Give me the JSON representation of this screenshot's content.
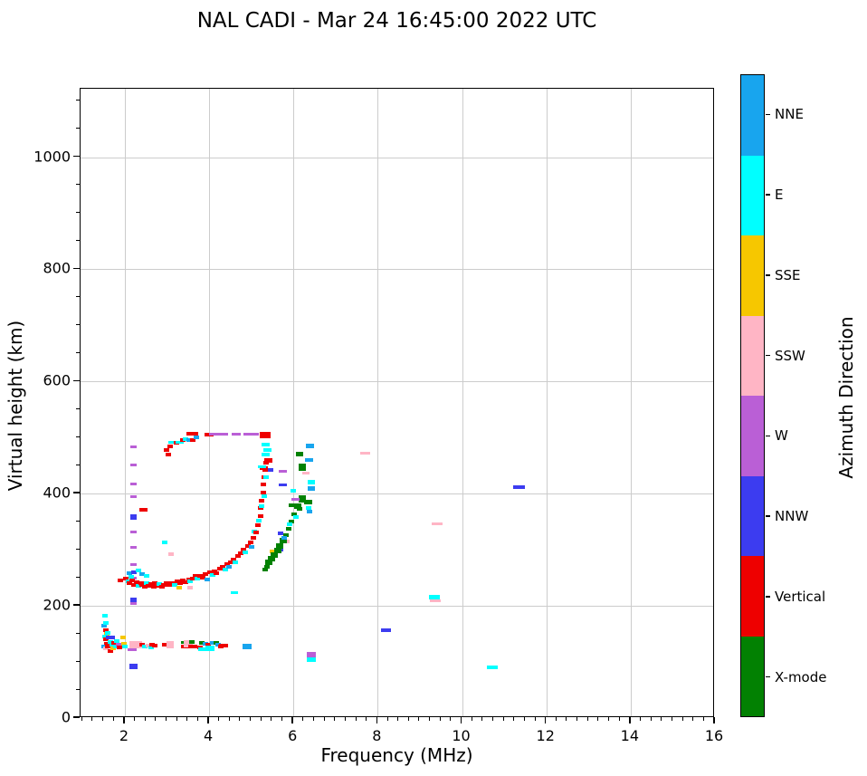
{
  "title": "NAL CADI - Mar 24 16:45:00 2022 UTC",
  "chart_data": {
    "type": "scatter",
    "title": "NAL CADI - Mar 24 16:45:00 2022 UTC",
    "xlabel": "Frequency (MHz)",
    "ylabel": "Virtual height (km)",
    "xlim": [
      0.95,
      16.0
    ],
    "ylim": [
      0,
      1122
    ],
    "x_ticks": [
      2,
      4,
      6,
      8,
      10,
      12,
      14,
      16
    ],
    "y_ticks": [
      0,
      200,
      400,
      600,
      800,
      1000
    ],
    "x_minor_step": 0.25,
    "y_minor_step": 50,
    "grid": true,
    "grid_color": "#cccccc",
    "axis_color": "#000000",
    "legend_position": "right-colorbar",
    "colorbar": {
      "label": "Azimuth Direction",
      "categories_bottom_to_top": [
        "X-mode",
        "Vertical",
        "NNW",
        "W",
        "SSW",
        "SSE",
        "E",
        "NNE"
      ],
      "colors": {
        "NNE": "#18a5ee",
        "E": "#00ffff",
        "SSE": "#f6c700",
        "SSW": "#ffb5c5",
        "W": "#ba5fd6",
        "NNW": "#3c3cf0",
        "Vertical": "#ee0000",
        "X-mode": "#028102"
      }
    },
    "point_format": [
      "frequency_mhz",
      "virtual_height_km",
      "azimuth_category",
      "px_width_optional",
      "px_height_optional"
    ],
    "points": [
      [
        1.52,
        182,
        "E"
      ],
      [
        1.5,
        164,
        "NNE"
      ],
      [
        1.55,
        170,
        "E"
      ],
      [
        1.55,
        157,
        "Vertical"
      ],
      [
        1.57,
        150,
        "SSE"
      ],
      [
        1.52,
        146,
        "E"
      ],
      [
        1.55,
        140,
        "Vertical"
      ],
      [
        1.6,
        152,
        "E"
      ],
      [
        1.62,
        144,
        "NNW"
      ],
      [
        1.58,
        133,
        "Vertical"
      ],
      [
        1.5,
        128,
        "NNE"
      ],
      [
        1.55,
        124,
        "SSW"
      ],
      [
        1.6,
        127,
        "Vertical"
      ],
      [
        1.65,
        136,
        "E"
      ],
      [
        1.65,
        120,
        "Vertical"
      ],
      [
        1.7,
        143,
        "NNW"
      ],
      [
        1.7,
        130,
        "E"
      ],
      [
        1.73,
        124,
        "SSE"
      ],
      [
        1.75,
        134,
        "Vertical"
      ],
      [
        1.78,
        128,
        "E"
      ],
      [
        1.8,
        138,
        "E"
      ],
      [
        1.85,
        130,
        "W"
      ],
      [
        1.88,
        126,
        "Vertical"
      ],
      [
        1.95,
        143,
        "SSE"
      ],
      [
        1.97,
        133,
        "SSE"
      ],
      [
        2.0,
        128,
        "E"
      ],
      [
        2.18,
        122,
        "W",
        10,
        3
      ],
      [
        2.25,
        131,
        "SSW",
        14,
        8
      ],
      [
        2.42,
        131,
        "Vertical"
      ],
      [
        2.48,
        127,
        "E"
      ],
      [
        2.55,
        129,
        "SSW"
      ],
      [
        2.62,
        126,
        "E"
      ],
      [
        2.65,
        131,
        "Vertical"
      ],
      [
        2.72,
        129,
        "Vertical"
      ],
      [
        3.0,
        130,
        "Vertical",
        10,
        4
      ],
      [
        3.08,
        130,
        "SSW",
        8,
        8
      ],
      [
        3.42,
        134,
        "X-mode",
        8,
        3
      ],
      [
        3.45,
        127,
        "Vertical",
        10,
        4
      ],
      [
        3.5,
        132,
        "SSW",
        10,
        8
      ],
      [
        3.58,
        135,
        "X-mode"
      ],
      [
        3.62,
        128,
        "Vertical",
        10,
        4
      ],
      [
        3.78,
        126,
        "Vertical"
      ],
      [
        3.82,
        134,
        "X-mode"
      ],
      [
        3.85,
        122,
        "E",
        10,
        4
      ],
      [
        3.92,
        133,
        "NNE"
      ],
      [
        3.97,
        130,
        "Vertical"
      ],
      [
        4.02,
        125,
        "E",
        10,
        6
      ],
      [
        4.08,
        134,
        "NNE"
      ],
      [
        4.17,
        134,
        "X-mode"
      ],
      [
        4.22,
        131,
        "NNE"
      ],
      [
        4.28,
        128,
        "Vertical"
      ],
      [
        4.35,
        129,
        "Vertical",
        10,
        4
      ],
      [
        4.9,
        128,
        "NNE",
        10,
        6
      ],
      [
        6.42,
        113,
        "W",
        10,
        6
      ],
      [
        6.42,
        104,
        "E",
        10,
        5
      ],
      [
        2.2,
        92,
        "NNW",
        9,
        6
      ],
      [
        10.72,
        90,
        "E",
        12,
        4
      ],
      [
        2.2,
        483,
        "W",
        7,
        3
      ],
      [
        2.2,
        452,
        "W",
        7,
        3
      ],
      [
        2.2,
        417,
        "W",
        7,
        3
      ],
      [
        2.2,
        394,
        "W",
        7,
        3
      ],
      [
        2.2,
        358,
        "NNW",
        7,
        6
      ],
      [
        2.2,
        331,
        "W",
        7,
        3
      ],
      [
        2.2,
        304,
        "W",
        7,
        3
      ],
      [
        2.2,
        273,
        "W",
        7,
        3
      ],
      [
        2.2,
        250,
        "W",
        7,
        3
      ],
      [
        2.2,
        210,
        "NNW",
        7,
        5
      ],
      [
        2.2,
        204,
        "W",
        7,
        3
      ],
      [
        2.45,
        372,
        "Vertical",
        9,
        4
      ],
      [
        1.9,
        246,
        "Vertical"
      ],
      [
        2.02,
        248,
        "Vertical"
      ],
      [
        2.08,
        243,
        "E"
      ],
      [
        2.12,
        240,
        "Vertical"
      ],
      [
        2.18,
        245,
        "Vertical"
      ],
      [
        2.22,
        238,
        "Vertical"
      ],
      [
        2.28,
        242,
        "Vertical"
      ],
      [
        2.32,
        236,
        "E"
      ],
      [
        2.38,
        241,
        "Vertical"
      ],
      [
        2.42,
        237,
        "Vertical"
      ],
      [
        2.48,
        234,
        "Vertical"
      ],
      [
        2.52,
        240,
        "E"
      ],
      [
        2.57,
        236,
        "Vertical"
      ],
      [
        2.62,
        239,
        "Vertical"
      ],
      [
        2.68,
        234,
        "Vertical"
      ],
      [
        2.72,
        240,
        "Vertical"
      ],
      [
        2.78,
        236,
        "Vertical"
      ],
      [
        2.82,
        239,
        "E"
      ],
      [
        2.88,
        234,
        "Vertical"
      ],
      [
        2.92,
        237,
        "Vertical"
      ],
      [
        2.98,
        240,
        "Vertical"
      ],
      [
        2.1,
        258,
        "NNE"
      ],
      [
        2.22,
        260,
        "NNW"
      ],
      [
        2.32,
        263,
        "E"
      ],
      [
        2.42,
        256,
        "NNE"
      ],
      [
        2.52,
        254,
        "E"
      ],
      [
        2.15,
        252,
        "E"
      ],
      [
        3.05,
        237,
        "Vertical"
      ],
      [
        3.12,
        241,
        "Vertical"
      ],
      [
        3.18,
        238,
        "E"
      ],
      [
        3.25,
        243,
        "Vertical"
      ],
      [
        3.32,
        240,
        "Vertical"
      ],
      [
        3.38,
        245,
        "Vertical"
      ],
      [
        3.45,
        242,
        "Vertical"
      ],
      [
        3.52,
        247,
        "Vertical"
      ],
      [
        3.55,
        243,
        "E"
      ],
      [
        3.62,
        249,
        "Vertical"
      ],
      [
        3.68,
        253,
        "Vertical"
      ],
      [
        3.72,
        248,
        "E"
      ],
      [
        3.78,
        254,
        "Vertical"
      ],
      [
        3.85,
        251,
        "Vertical"
      ],
      [
        3.92,
        257,
        "Vertical"
      ],
      [
        3.95,
        247,
        "NNE"
      ],
      [
        4.02,
        260,
        "Vertical"
      ],
      [
        4.08,
        255,
        "E"
      ],
      [
        4.12,
        262,
        "Vertical"
      ],
      [
        4.18,
        258,
        "Vertical"
      ],
      [
        4.25,
        266,
        "Vertical"
      ],
      [
        4.32,
        270,
        "Vertical"
      ],
      [
        4.38,
        265,
        "E"
      ],
      [
        4.42,
        274,
        "Vertical"
      ],
      [
        4.48,
        270,
        "NNE"
      ],
      [
        4.52,
        278,
        "Vertical"
      ],
      [
        4.58,
        283,
        "Vertical"
      ],
      [
        4.62,
        277,
        "E"
      ],
      [
        4.68,
        289,
        "Vertical"
      ],
      [
        4.75,
        294,
        "Vertical"
      ],
      [
        4.82,
        300,
        "Vertical"
      ],
      [
        4.85,
        296,
        "E"
      ],
      [
        4.92,
        307,
        "Vertical"
      ],
      [
        4.98,
        313,
        "Vertical"
      ],
      [
        5.0,
        305,
        "NNE"
      ],
      [
        5.05,
        322,
        "Vertical"
      ],
      [
        5.08,
        332,
        "E"
      ],
      [
        5.12,
        331,
        "Vertical"
      ],
      [
        5.15,
        344,
        "Vertical"
      ],
      [
        5.18,
        352,
        "E"
      ],
      [
        5.22,
        360,
        "Vertical"
      ],
      [
        5.22,
        374,
        "Vertical"
      ],
      [
        5.25,
        388,
        "Vertical"
      ],
      [
        5.28,
        402,
        "Vertical"
      ],
      [
        5.28,
        416,
        "Vertical"
      ],
      [
        5.3,
        430,
        "Vertical"
      ],
      [
        5.32,
        443,
        "Vertical"
      ],
      [
        5.35,
        455,
        "Vertical"
      ],
      [
        5.35,
        430,
        "E"
      ],
      [
        5.3,
        395,
        "E"
      ],
      [
        5.25,
        378,
        "E"
      ],
      [
        3.3,
        232,
        "SSE"
      ],
      [
        5.5,
        297,
        "SSE"
      ],
      [
        3.55,
        232,
        "SSW"
      ],
      [
        3.1,
        292,
        "SSW"
      ],
      [
        5.85,
        315,
        "SSW"
      ],
      [
        5.7,
        330,
        "NNW"
      ],
      [
        5.7,
        300,
        "NNW"
      ],
      [
        5.75,
        415,
        "NNW",
        9,
        3
      ],
      [
        5.75,
        440,
        "W",
        9,
        3
      ],
      [
        5.45,
        443,
        "NNW"
      ],
      [
        4.6,
        223,
        "E",
        8,
        3
      ],
      [
        2.95,
        313,
        "E"
      ],
      [
        5.32,
        265,
        "X-mode"
      ],
      [
        5.38,
        270,
        "X-mode"
      ],
      [
        5.42,
        278,
        "X-mode",
        8,
        6
      ],
      [
        5.48,
        284,
        "X-mode",
        8,
        6
      ],
      [
        5.55,
        291,
        "X-mode",
        8,
        6
      ],
      [
        5.62,
        299,
        "X-mode",
        8,
        6
      ],
      [
        5.68,
        307,
        "X-mode",
        8,
        6
      ],
      [
        5.75,
        316,
        "X-mode",
        8,
        6
      ],
      [
        5.82,
        326,
        "X-mode"
      ],
      [
        5.88,
        337,
        "X-mode"
      ],
      [
        5.95,
        350,
        "X-mode"
      ],
      [
        6.02,
        363,
        "X-mode"
      ],
      [
        6.1,
        378,
        "X-mode",
        8,
        6
      ],
      [
        6.15,
        373,
        "X-mode"
      ],
      [
        6.2,
        390,
        "X-mode",
        8,
        8
      ],
      [
        6.2,
        447,
        "X-mode",
        8,
        8
      ],
      [
        6.15,
        470,
        "X-mode",
        8,
        5
      ],
      [
        6.35,
        385,
        "X-mode",
        9,
        5
      ],
      [
        5.95,
        380,
        "X-mode"
      ],
      [
        6.05,
        390,
        "W",
        9,
        3
      ],
      [
        6.0,
        406,
        "E"
      ],
      [
        6.42,
        420,
        "E",
        8,
        5
      ],
      [
        6.42,
        409,
        "NNE",
        8,
        5
      ],
      [
        6.3,
        437,
        "SSW",
        8,
        3
      ],
      [
        6.38,
        460,
        "NNE",
        9,
        4
      ],
      [
        6.4,
        485,
        "NNE",
        9,
        5
      ],
      [
        6.35,
        374,
        "E"
      ],
      [
        6.38,
        368,
        "NNE"
      ],
      [
        5.78,
        322,
        "NNE"
      ],
      [
        5.92,
        345,
        "E"
      ],
      [
        6.05,
        358,
        "E"
      ],
      [
        2.98,
        478,
        "Vertical"
      ],
      [
        3.03,
        470,
        "Vertical"
      ],
      [
        3.08,
        485,
        "Vertical"
      ],
      [
        3.12,
        491,
        "E",
        9,
        3
      ],
      [
        3.22,
        490,
        "Vertical"
      ],
      [
        3.3,
        491,
        "E",
        9,
        3
      ],
      [
        3.38,
        495,
        "Vertical"
      ],
      [
        3.45,
        497,
        "E"
      ],
      [
        3.52,
        495,
        "NNE"
      ],
      [
        3.55,
        507,
        "Vertical",
        9,
        4
      ],
      [
        3.62,
        495,
        "Vertical"
      ],
      [
        3.68,
        507,
        "Vertical"
      ],
      [
        3.7,
        501,
        "NNE"
      ],
      [
        4.0,
        505,
        "Vertical",
        10,
        4
      ],
      [
        4.1,
        506,
        "W",
        9,
        3
      ],
      [
        4.22,
        506,
        "W",
        9,
        3
      ],
      [
        4.32,
        506,
        "W",
        12,
        3
      ],
      [
        4.65,
        506,
        "W",
        10,
        3
      ],
      [
        4.95,
        506,
        "W",
        12,
        3
      ],
      [
        5.08,
        506,
        "W",
        9,
        3
      ],
      [
        5.32,
        505,
        "Vertical",
        12,
        7
      ],
      [
        5.35,
        487,
        "E",
        9,
        4
      ],
      [
        5.38,
        478,
        "E",
        9,
        4
      ],
      [
        5.35,
        469,
        "E",
        9,
        4
      ],
      [
        5.4,
        459,
        "Vertical",
        9,
        5
      ],
      [
        5.3,
        446,
        "Vertical",
        9,
        4
      ],
      [
        5.25,
        448,
        "E",
        9,
        3
      ],
      [
        7.7,
        472,
        "SSW",
        11,
        3
      ],
      [
        11.35,
        412,
        "NNW",
        13,
        4
      ],
      [
        9.4,
        347,
        "SSW",
        12,
        3
      ],
      [
        9.35,
        215,
        "E",
        12,
        5
      ],
      [
        9.37,
        209,
        "SSW",
        12,
        3
      ],
      [
        8.2,
        157,
        "NNW",
        11,
        4
      ]
    ]
  }
}
